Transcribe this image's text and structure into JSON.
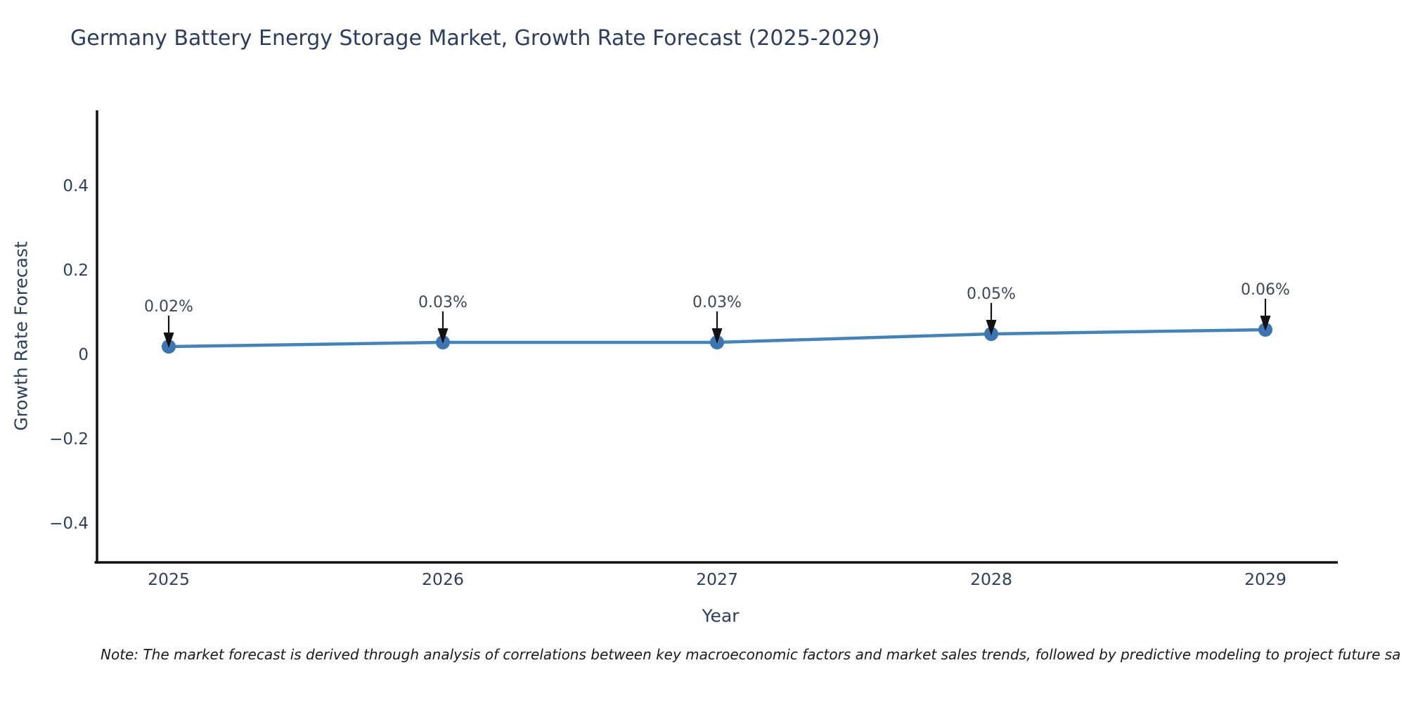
{
  "chart_data": {
    "type": "line",
    "title": "Germany Battery Energy Storage Market, Growth Rate Forecast (2025-2029)",
    "xlabel": "Year",
    "ylabel": "Growth Rate Forecast",
    "categories": [
      "2025",
      "2026",
      "2027",
      "2028",
      "2029"
    ],
    "values": [
      0.02,
      0.03,
      0.03,
      0.05,
      0.06
    ],
    "point_labels": [
      "0.02%",
      "0.03%",
      "0.03%",
      "0.05%",
      "0.06%"
    ],
    "ytick_values": [
      0.4,
      0.2,
      0,
      -0.2,
      -0.4
    ],
    "ytick_labels": [
      "0.4",
      "0.2",
      "0",
      "−0.2",
      "−0.4"
    ],
    "ylim": [
      -0.49,
      0.58
    ],
    "grid": false,
    "legend": false,
    "annotation_style": "label-with-down-arrow",
    "note": "Note: The market forecast is derived through analysis of correlations between key macroeconomic factors and market sales trends, followed by predictive modeling to project future sa",
    "colors": {
      "line": "#4383bc",
      "marker": "#3b76b3",
      "axis": "#111111",
      "tick_text": "#2e405f",
      "title_text": "#2c3e5d",
      "annotation_text": "#3d4758",
      "arrow": "#111111",
      "note_text": "#1a1a1a"
    }
  }
}
